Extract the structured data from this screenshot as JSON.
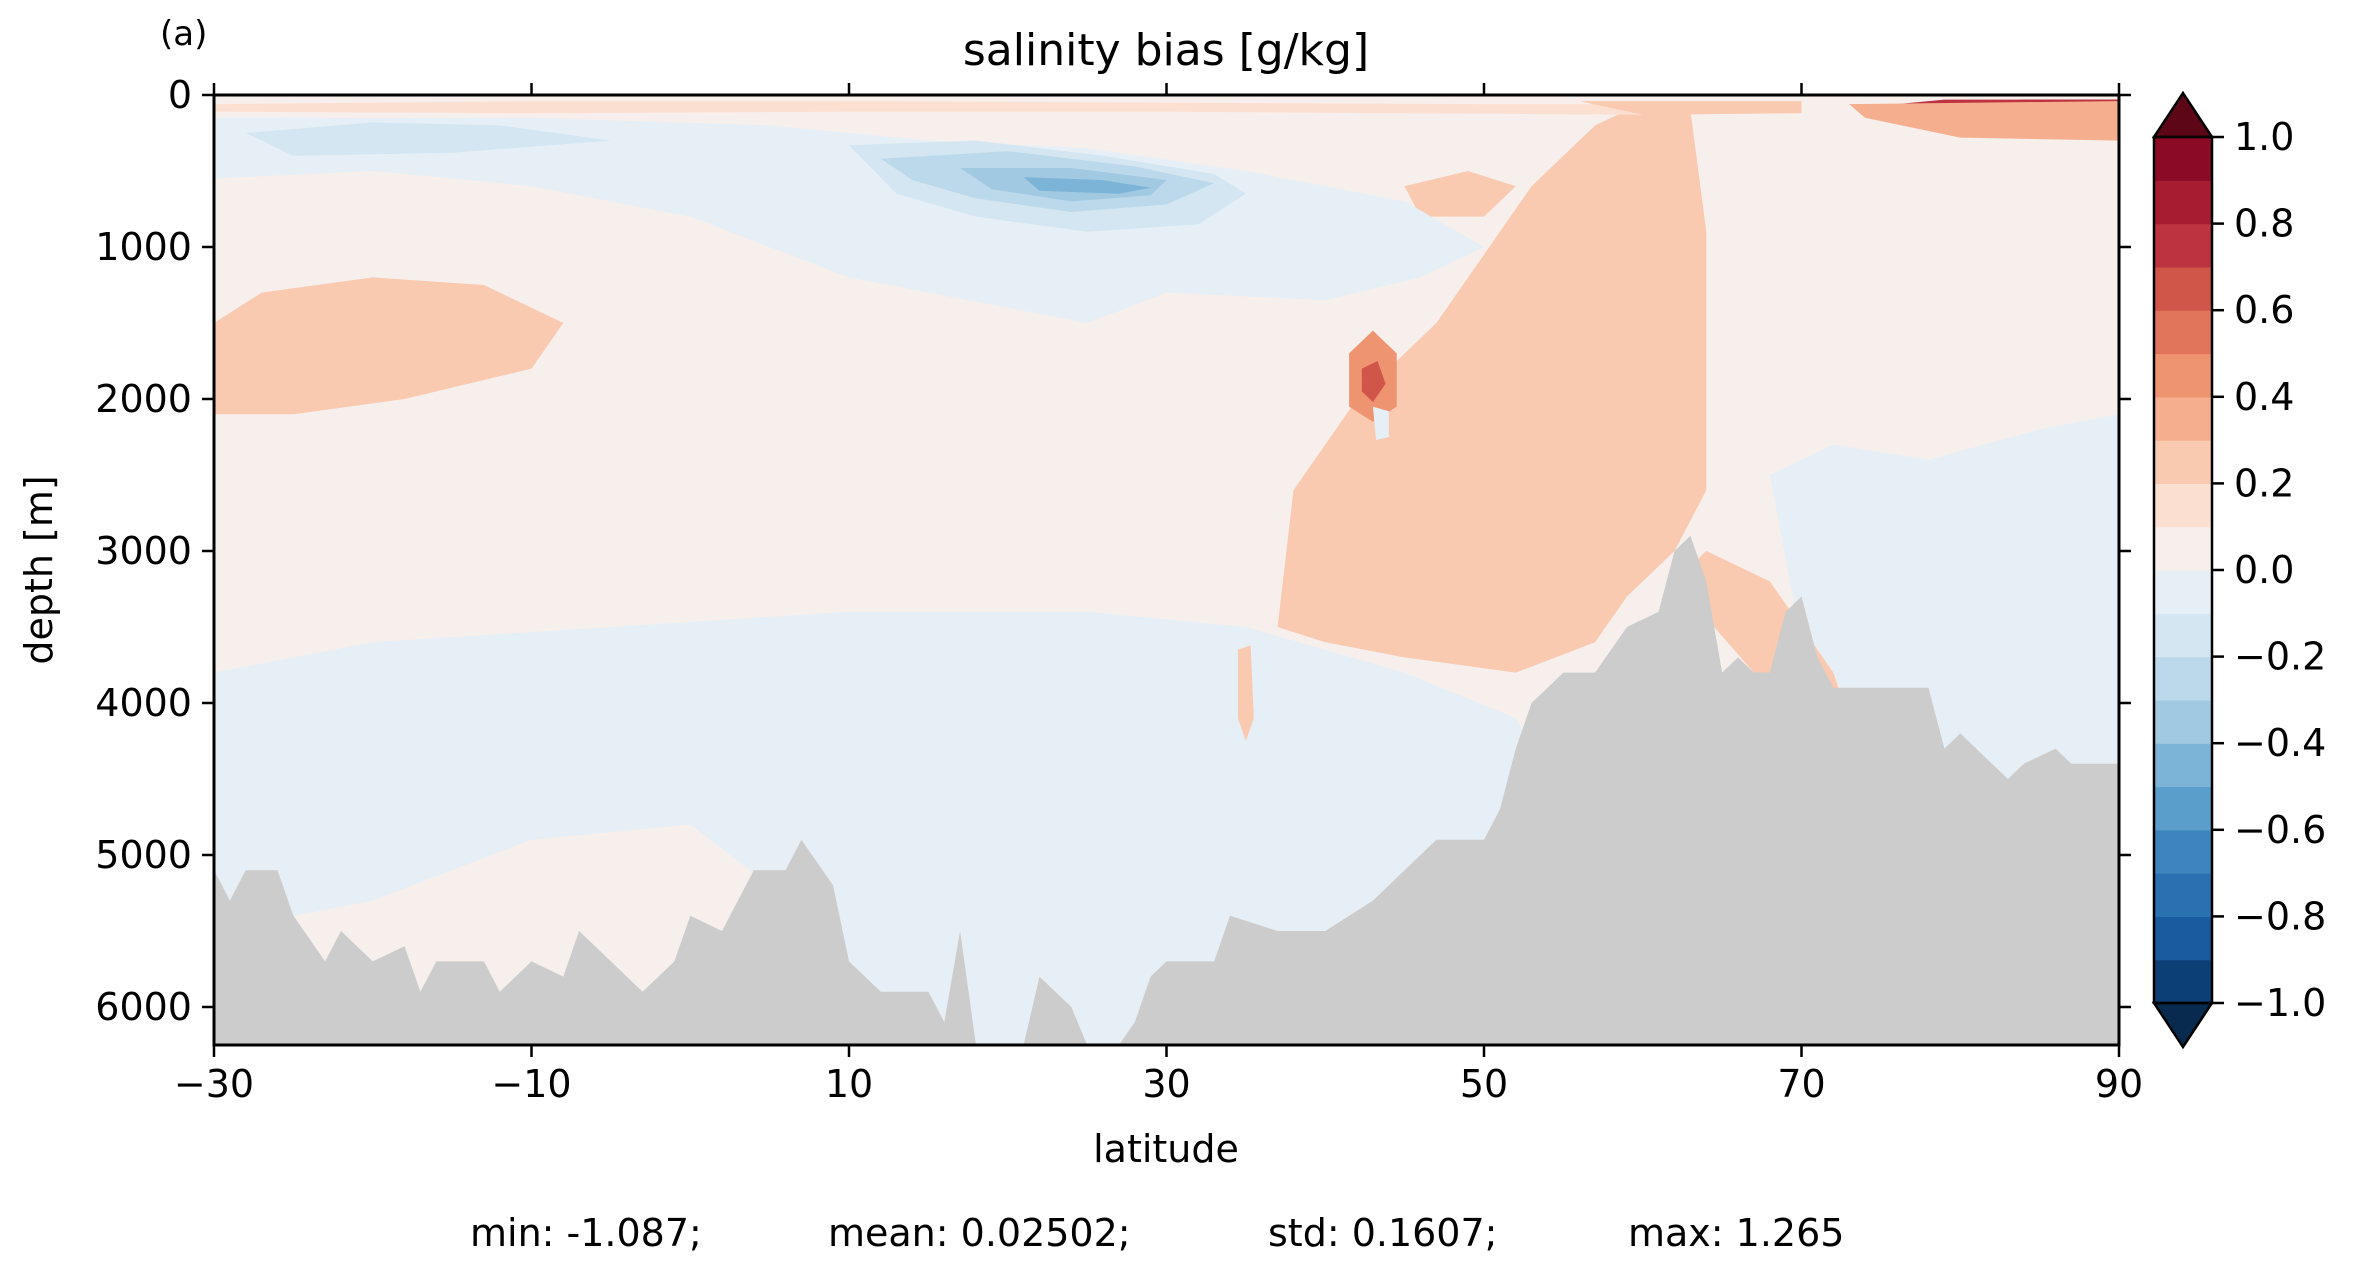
{
  "panel_label": "(a)",
  "chart_data": {
    "type": "heatmap",
    "title": "salinity bias [g/kg]",
    "xlabel": "latitude",
    "ylabel": "depth [m]",
    "xlim": [
      -30,
      90
    ],
    "ylim": [
      6250,
      0
    ],
    "y_inverted": true,
    "x_ticks": [
      -30,
      -10,
      10,
      30,
      50,
      70,
      90
    ],
    "x_tick_labels": [
      "−30",
      "−10",
      "10",
      "30",
      "50",
      "70",
      "90"
    ],
    "y_ticks": [
      0,
      1000,
      2000,
      3000,
      4000,
      5000,
      6000
    ],
    "y_tick_labels": [
      "0",
      "1000",
      "2000",
      "3000",
      "4000",
      "5000",
      "6000"
    ],
    "grid": false,
    "colorbar": {
      "colormap": "RdBu_r",
      "vmin": -1.0,
      "vmax": 1.0,
      "extend": "both",
      "levels": [
        -1.0,
        -0.9,
        -0.8,
        -0.7,
        -0.6,
        -0.5,
        -0.4,
        -0.3,
        -0.2,
        -0.1,
        0.0,
        0.1,
        0.2,
        0.3,
        0.4,
        0.5,
        0.6,
        0.7,
        0.8,
        0.9,
        1.0
      ],
      "level_colors": [
        "#0d3f77",
        "#1a5a9f",
        "#2a71b1",
        "#3c85bd",
        "#5a9ecb",
        "#7cb4d7",
        "#a1c9e2",
        "#bcd9eb",
        "#d3e6f1",
        "#e6eff5",
        "#f6efec",
        "#fbe0d2",
        "#f9c9b0",
        "#f5af8f",
        "#ee9470",
        "#e0755b",
        "#d1564a",
        "#bd3340",
        "#a81c32",
        "#8b0a26"
      ],
      "under_color": "#092a4f",
      "over_color": "#5c0618",
      "ticks": [
        -1.0,
        -0.8,
        -0.6,
        -0.4,
        -0.2,
        0.0,
        0.2,
        0.4,
        0.6,
        0.8,
        1.0
      ],
      "tick_labels": [
        "−1.0",
        "−0.8",
        "−0.6",
        "−0.4",
        "−0.2",
        "0.0",
        "0.2",
        "0.4",
        "0.6",
        "0.8",
        "1.0"
      ]
    },
    "background_bias": 0.05,
    "regions": [
      {
        "value": 0.25,
        "poly": [
          [
            37,
            3500
          ],
          [
            38,
            2600
          ],
          [
            42,
            2000
          ],
          [
            47,
            1500
          ],
          [
            51,
            900
          ],
          [
            53,
            600
          ],
          [
            55,
            400
          ],
          [
            57,
            200
          ],
          [
            59,
            100
          ],
          [
            63,
            100
          ],
          [
            64,
            900
          ],
          [
            64,
            2600
          ],
          [
            62,
            3000
          ],
          [
            59,
            3300
          ],
          [
            57,
            3600
          ],
          [
            52,
            3800
          ],
          [
            45,
            3700
          ],
          [
            40,
            3600
          ]
        ]
      },
      {
        "value": 0.25,
        "poly": [
          [
            -30,
            1500
          ],
          [
            -27,
            1300
          ],
          [
            -20,
            1200
          ],
          [
            -13,
            1250
          ],
          [
            -8,
            1500
          ],
          [
            -10,
            1800
          ],
          [
            -18,
            2000
          ],
          [
            -25,
            2100
          ],
          [
            -30,
            2100
          ]
        ]
      },
      {
        "value": 0.25,
        "poly": [
          [
            45,
            600
          ],
          [
            49,
            500
          ],
          [
            52,
            600
          ],
          [
            50,
            800
          ],
          [
            46,
            800
          ]
        ]
      },
      {
        "value": 0.45,
        "poly": [
          [
            41.5,
            1700
          ],
          [
            43,
            1550
          ],
          [
            44.5,
            1700
          ],
          [
            44.5,
            2050
          ],
          [
            43,
            2150
          ],
          [
            41.5,
            2050
          ]
        ]
      },
      {
        "value": 0.65,
        "poly": [
          [
            42.3,
            1800
          ],
          [
            43.3,
            1750
          ],
          [
            43.8,
            1900
          ],
          [
            43,
            2020
          ],
          [
            42.3,
            1950
          ]
        ]
      },
      {
        "value": -0.05,
        "poly": [
          [
            43,
            2050
          ],
          [
            44,
            2080
          ],
          [
            44,
            2250
          ],
          [
            43.2,
            2270
          ]
        ]
      },
      {
        "value": 0.15,
        "poly": [
          [
            -30,
            60
          ],
          [
            -10,
            40
          ],
          [
            10,
            40
          ],
          [
            30,
            50
          ],
          [
            50,
            60
          ],
          [
            60,
            60
          ],
          [
            60,
            130
          ],
          [
            30,
            110
          ],
          [
            10,
            110
          ],
          [
            -10,
            120
          ],
          [
            -30,
            110
          ]
        ]
      },
      {
        "value": -0.05,
        "poly": [
          [
            -30,
            150
          ],
          [
            -10,
            150
          ],
          [
            5,
            200
          ],
          [
            15,
            300
          ],
          [
            25,
            350
          ],
          [
            35,
            500
          ],
          [
            45,
            700
          ],
          [
            50,
            1000
          ],
          [
            46,
            1200
          ],
          [
            40,
            1350
          ],
          [
            30,
            1300
          ],
          [
            25,
            1500
          ],
          [
            20,
            1400
          ],
          [
            10,
            1200
          ],
          [
            0,
            800
          ],
          [
            -10,
            600
          ],
          [
            -20,
            500
          ],
          [
            -30,
            550
          ]
        ]
      },
      {
        "value": -0.15,
        "poly": [
          [
            -28,
            250
          ],
          [
            -20,
            180
          ],
          [
            -12,
            200
          ],
          [
            -5,
            300
          ],
          [
            -15,
            380
          ],
          [
            -25,
            400
          ]
        ]
      },
      {
        "value": -0.15,
        "poly": [
          [
            10,
            330
          ],
          [
            18,
            300
          ],
          [
            26,
            400
          ],
          [
            33,
            520
          ],
          [
            35,
            650
          ],
          [
            32,
            850
          ],
          [
            25,
            900
          ],
          [
            18,
            800
          ],
          [
            13,
            650
          ]
        ]
      },
      {
        "value": -0.25,
        "poly": [
          [
            12,
            420
          ],
          [
            20,
            370
          ],
          [
            28,
            470
          ],
          [
            33,
            580
          ],
          [
            30,
            720
          ],
          [
            24,
            770
          ],
          [
            18,
            680
          ],
          [
            14,
            560
          ]
        ]
      },
      {
        "value": -0.35,
        "poly": [
          [
            17,
            480
          ],
          [
            24,
            480
          ],
          [
            30,
            560
          ],
          [
            29,
            660
          ],
          [
            24,
            700
          ],
          [
            19,
            620
          ]
        ]
      },
      {
        "value": -0.45,
        "poly": [
          [
            21,
            540
          ],
          [
            26,
            560
          ],
          [
            29,
            610
          ],
          [
            27,
            650
          ],
          [
            22,
            630
          ]
        ]
      },
      {
        "value": 0.95,
        "poly": [
          [
            79,
            60
          ],
          [
            84,
            30
          ],
          [
            90,
            30
          ],
          [
            90,
            200
          ],
          [
            85,
            230
          ],
          [
            79,
            120
          ]
        ]
      },
      {
        "value": 0.75,
        "poly": [
          [
            76,
            60
          ],
          [
            79,
            30
          ],
          [
            90,
            30
          ],
          [
            90,
            250
          ],
          [
            84,
            270
          ],
          [
            77,
            140
          ]
        ]
      },
      {
        "value": 0.4,
        "poly": [
          [
            73,
            60
          ],
          [
            90,
            40
          ],
          [
            90,
            300
          ],
          [
            80,
            280
          ],
          [
            74,
            150
          ]
        ]
      },
      {
        "value": 0.3,
        "poly": [
          [
            56,
            40
          ],
          [
            70,
            40
          ],
          [
            70,
            120
          ],
          [
            60,
            130
          ]
        ]
      },
      {
        "value": -0.05,
        "poly": [
          [
            -30,
            3800
          ],
          [
            -20,
            3600
          ],
          [
            -5,
            3500
          ],
          [
            10,
            3400
          ],
          [
            25,
            3400
          ],
          [
            35,
            3500
          ],
          [
            45,
            3800
          ],
          [
            52,
            4100
          ],
          [
            55,
            4600
          ],
          [
            55,
            6250
          ],
          [
            12,
            6250
          ],
          [
            10,
            5800
          ],
          [
            5,
            5200
          ],
          [
            0,
            4800
          ],
          [
            -10,
            4900
          ],
          [
            -20,
            5300
          ],
          [
            -30,
            5500
          ]
        ]
      },
      {
        "value": -0.05,
        "poly": [
          [
            68,
            2500
          ],
          [
            72,
            2300
          ],
          [
            78,
            2400
          ],
          [
            85,
            2200
          ],
          [
            90,
            2100
          ],
          [
            90,
            4500
          ],
          [
            80,
            4500
          ],
          [
            75,
            4200
          ],
          [
            70,
            3600
          ]
        ]
      },
      {
        "value": 0.25,
        "poly": [
          [
            34.5,
            3650
          ],
          [
            35.3,
            3620
          ],
          [
            35.5,
            4100
          ],
          [
            35,
            4250
          ],
          [
            34.5,
            4100
          ]
        ]
      },
      {
        "value": 0.25,
        "poly": [
          [
            62,
            3200
          ],
          [
            64,
            3000
          ],
          [
            68,
            3200
          ],
          [
            72,
            3800
          ],
          [
            74,
            4400
          ],
          [
            75,
            4600
          ],
          [
            73,
            4700
          ],
          [
            70,
            4300
          ],
          [
            67,
            3800
          ]
        ]
      }
    ],
    "bathymetry": {
      "color": "#cccccc",
      "profile": [
        [
          -30,
          5100
        ],
        [
          -29,
          5300
        ],
        [
          -28,
          5100
        ],
        [
          -26,
          5100
        ],
        [
          -25,
          5400
        ],
        [
          -23,
          5700
        ],
        [
          -22,
          5500
        ],
        [
          -20,
          5700
        ],
        [
          -18,
          5600
        ],
        [
          -17,
          5900
        ],
        [
          -16,
          5700
        ],
        [
          -13,
          5700
        ],
        [
          -12,
          5900
        ],
        [
          -10,
          5700
        ],
        [
          -8,
          5800
        ],
        [
          -7,
          5500
        ],
        [
          -5,
          5700
        ],
        [
          -3,
          5900
        ],
        [
          -1,
          5700
        ],
        [
          0,
          5400
        ],
        [
          2,
          5500
        ],
        [
          4,
          5100
        ],
        [
          6,
          5100
        ],
        [
          7,
          4900
        ],
        [
          9,
          5200
        ],
        [
          10,
          5700
        ],
        [
          12,
          5900
        ],
        [
          15,
          5900
        ],
        [
          16,
          6100
        ],
        [
          17,
          5500
        ],
        [
          18,
          6250
        ],
        [
          21,
          6250
        ],
        [
          22,
          5800
        ],
        [
          24,
          6000
        ],
        [
          25,
          6250
        ],
        [
          27,
          6250
        ],
        [
          28,
          6100
        ],
        [
          29,
          5800
        ],
        [
          30,
          5700
        ],
        [
          33,
          5700
        ],
        [
          34,
          5400
        ],
        [
          37,
          5500
        ],
        [
          40,
          5500
        ],
        [
          43,
          5300
        ],
        [
          45,
          5100
        ],
        [
          47,
          4900
        ],
        [
          50,
          4900
        ],
        [
          51,
          4700
        ],
        [
          52,
          4300
        ],
        [
          53,
          4000
        ],
        [
          55,
          3800
        ],
        [
          57,
          3800
        ],
        [
          59,
          3500
        ],
        [
          61,
          3400
        ],
        [
          62,
          3000
        ],
        [
          63,
          2900
        ],
        [
          64,
          3200
        ],
        [
          65,
          3800
        ],
        [
          66,
          3700
        ],
        [
          67,
          3800
        ],
        [
          68,
          3800
        ],
        [
          69,
          3400
        ],
        [
          70,
          3300
        ],
        [
          71,
          3700
        ],
        [
          72,
          3900
        ],
        [
          73,
          3900
        ],
        [
          75,
          3900
        ],
        [
          76,
          3900
        ],
        [
          77,
          3900
        ],
        [
          78,
          3900
        ],
        [
          79,
          4300
        ],
        [
          80,
          4200
        ],
        [
          82,
          4400
        ],
        [
          83,
          4500
        ],
        [
          84,
          4400
        ],
        [
          86,
          4300
        ],
        [
          87,
          4400
        ],
        [
          90,
          4400
        ]
      ]
    }
  },
  "stats": {
    "min": "min: -1.087;",
    "mean": "mean: 0.02502;",
    "std": "std: 0.1607;",
    "max": "max: 1.265"
  }
}
